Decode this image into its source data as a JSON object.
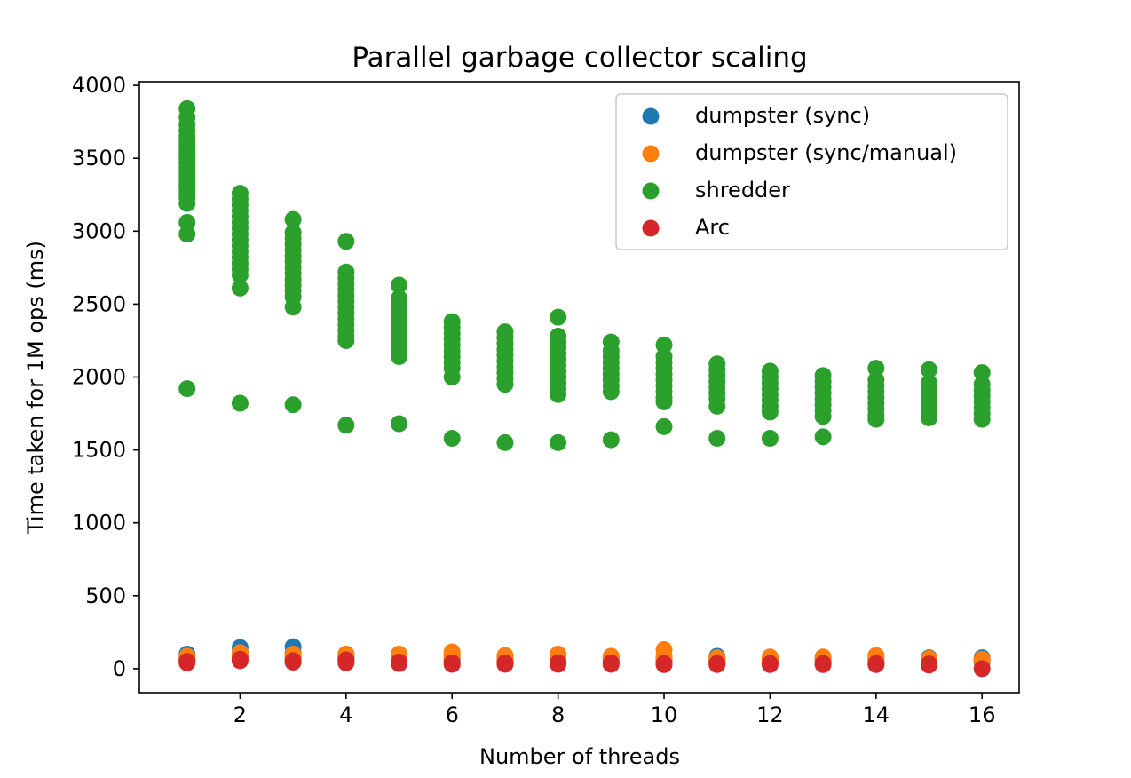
{
  "chart_data": {
    "type": "scatter",
    "title": "Parallel garbage collector scaling",
    "xlabel": "Number of threads",
    "ylabel": "Time taken for 1M ops (ms)",
    "xlim": [
      0.1,
      16.7
    ],
    "ylim": [
      -165,
      4025
    ],
    "x_ticks": [
      2,
      4,
      6,
      8,
      10,
      12,
      14,
      16
    ],
    "y_ticks": [
      0,
      500,
      1000,
      1500,
      2000,
      2500,
      3000,
      3500,
      4000
    ],
    "grid": false,
    "legend_position": "top-right",
    "series": [
      {
        "name": "dumpster (sync)",
        "color": "#1f77b4",
        "points": [
          [
            1,
            100
          ],
          [
            1,
            70
          ],
          [
            1,
            55
          ],
          [
            2,
            145
          ],
          [
            2,
            110
          ],
          [
            2,
            85
          ],
          [
            3,
            150
          ],
          [
            3,
            110
          ],
          [
            3,
            80
          ],
          [
            4,
            100
          ],
          [
            4,
            75
          ],
          [
            4,
            55
          ],
          [
            5,
            95
          ],
          [
            5,
            70
          ],
          [
            5,
            55
          ],
          [
            6,
            90
          ],
          [
            6,
            65
          ],
          [
            6,
            50
          ],
          [
            7,
            85
          ],
          [
            7,
            60
          ],
          [
            7,
            45
          ],
          [
            8,
            85
          ],
          [
            8,
            60
          ],
          [
            8,
            45
          ],
          [
            9,
            80
          ],
          [
            9,
            60
          ],
          [
            9,
            45
          ],
          [
            10,
            80
          ],
          [
            10,
            60
          ],
          [
            10,
            45
          ],
          [
            11,
            85
          ],
          [
            11,
            60
          ],
          [
            11,
            45
          ],
          [
            12,
            75
          ],
          [
            12,
            55
          ],
          [
            12,
            40
          ],
          [
            13,
            75
          ],
          [
            13,
            55
          ],
          [
            13,
            40
          ],
          [
            14,
            75
          ],
          [
            14,
            55
          ],
          [
            14,
            40
          ],
          [
            15,
            75
          ],
          [
            15,
            55
          ],
          [
            15,
            40
          ],
          [
            16,
            75
          ],
          [
            16,
            60
          ],
          [
            16,
            45
          ]
        ]
      },
      {
        "name": "dumpster (sync/manual)",
        "color": "#ff7f0e",
        "points": [
          [
            1,
            85
          ],
          [
            1,
            60
          ],
          [
            2,
            110
          ],
          [
            2,
            80
          ],
          [
            3,
            100
          ],
          [
            3,
            75
          ],
          [
            4,
            100
          ],
          [
            4,
            70
          ],
          [
            5,
            100
          ],
          [
            5,
            70
          ],
          [
            6,
            115
          ],
          [
            6,
            80
          ],
          [
            7,
            90
          ],
          [
            7,
            65
          ],
          [
            8,
            100
          ],
          [
            8,
            70
          ],
          [
            9,
            85
          ],
          [
            9,
            60
          ],
          [
            10,
            130
          ],
          [
            10,
            85
          ],
          [
            10,
            60
          ],
          [
            11,
            75
          ],
          [
            11,
            55
          ],
          [
            12,
            80
          ],
          [
            12,
            55
          ],
          [
            13,
            80
          ],
          [
            13,
            55
          ],
          [
            14,
            90
          ],
          [
            14,
            60
          ],
          [
            15,
            70
          ],
          [
            15,
            50
          ],
          [
            16,
            65
          ],
          [
            16,
            55
          ]
        ]
      },
      {
        "name": "shredder",
        "color": "#2ca02c",
        "points": [
          [
            1,
            3840
          ],
          [
            1,
            3780
          ],
          [
            1,
            3730
          ],
          [
            1,
            3690
          ],
          [
            1,
            3650
          ],
          [
            1,
            3620
          ],
          [
            1,
            3590
          ],
          [
            1,
            3560
          ],
          [
            1,
            3530
          ],
          [
            1,
            3500
          ],
          [
            1,
            3470
          ],
          [
            1,
            3440
          ],
          [
            1,
            3410
          ],
          [
            1,
            3380
          ],
          [
            1,
            3350
          ],
          [
            1,
            3320
          ],
          [
            1,
            3290
          ],
          [
            1,
            3260
          ],
          [
            1,
            3230
          ],
          [
            1,
            3190
          ],
          [
            1,
            3060
          ],
          [
            1,
            2980
          ],
          [
            1,
            1920
          ],
          [
            2,
            3260
          ],
          [
            2,
            3220
          ],
          [
            2,
            3180
          ],
          [
            2,
            3140
          ],
          [
            2,
            3100
          ],
          [
            2,
            3060
          ],
          [
            2,
            3020
          ],
          [
            2,
            2980
          ],
          [
            2,
            2940
          ],
          [
            2,
            2900
          ],
          [
            2,
            2860
          ],
          [
            2,
            2820
          ],
          [
            2,
            2780
          ],
          [
            2,
            2740
          ],
          [
            2,
            2700
          ],
          [
            2,
            2610
          ],
          [
            2,
            1820
          ],
          [
            3,
            3080
          ],
          [
            3,
            2990
          ],
          [
            3,
            2950
          ],
          [
            3,
            2910
          ],
          [
            3,
            2870
          ],
          [
            3,
            2830
          ],
          [
            3,
            2790
          ],
          [
            3,
            2750
          ],
          [
            3,
            2710
          ],
          [
            3,
            2670
          ],
          [
            3,
            2630
          ],
          [
            3,
            2590
          ],
          [
            3,
            2550
          ],
          [
            3,
            2480
          ],
          [
            3,
            1810
          ],
          [
            4,
            2930
          ],
          [
            4,
            2720
          ],
          [
            4,
            2680
          ],
          [
            4,
            2640
          ],
          [
            4,
            2600
          ],
          [
            4,
            2560
          ],
          [
            4,
            2520
          ],
          [
            4,
            2480
          ],
          [
            4,
            2440
          ],
          [
            4,
            2400
          ],
          [
            4,
            2360
          ],
          [
            4,
            2320
          ],
          [
            4,
            2280
          ],
          [
            4,
            2250
          ],
          [
            4,
            1670
          ],
          [
            5,
            2630
          ],
          [
            5,
            2540
          ],
          [
            5,
            2500
          ],
          [
            5,
            2460
          ],
          [
            5,
            2420
          ],
          [
            5,
            2380
          ],
          [
            5,
            2340
          ],
          [
            5,
            2300
          ],
          [
            5,
            2260
          ],
          [
            5,
            2220
          ],
          [
            5,
            2180
          ],
          [
            5,
            2140
          ],
          [
            5,
            1680
          ],
          [
            6,
            2380
          ],
          [
            6,
            2340
          ],
          [
            6,
            2300
          ],
          [
            6,
            2260
          ],
          [
            6,
            2220
          ],
          [
            6,
            2180
          ],
          [
            6,
            2140
          ],
          [
            6,
            2100
          ],
          [
            6,
            2060
          ],
          [
            6,
            2000
          ],
          [
            6,
            1580
          ],
          [
            7,
            2310
          ],
          [
            7,
            2270
          ],
          [
            7,
            2230
          ],
          [
            7,
            2190
          ],
          [
            7,
            2150
          ],
          [
            7,
            2110
          ],
          [
            7,
            2070
          ],
          [
            7,
            2030
          ],
          [
            7,
            1990
          ],
          [
            7,
            1950
          ],
          [
            7,
            1550
          ],
          [
            8,
            2410
          ],
          [
            8,
            2280
          ],
          [
            8,
            2240
          ],
          [
            8,
            2200
          ],
          [
            8,
            2160
          ],
          [
            8,
            2120
          ],
          [
            8,
            2080
          ],
          [
            8,
            2040
          ],
          [
            8,
            2000
          ],
          [
            8,
            1960
          ],
          [
            8,
            1920
          ],
          [
            8,
            1880
          ],
          [
            8,
            1550
          ],
          [
            9,
            2240
          ],
          [
            9,
            2180
          ],
          [
            9,
            2140
          ],
          [
            9,
            2100
          ],
          [
            9,
            2060
          ],
          [
            9,
            2020
          ],
          [
            9,
            1980
          ],
          [
            9,
            1940
          ],
          [
            9,
            1900
          ],
          [
            9,
            1570
          ],
          [
            10,
            2220
          ],
          [
            10,
            2140
          ],
          [
            10,
            2100
          ],
          [
            10,
            2060
          ],
          [
            10,
            2020
          ],
          [
            10,
            1980
          ],
          [
            10,
            1940
          ],
          [
            10,
            1900
          ],
          [
            10,
            1860
          ],
          [
            10,
            1830
          ],
          [
            10,
            1660
          ],
          [
            11,
            2090
          ],
          [
            11,
            2050
          ],
          [
            11,
            2010
          ],
          [
            11,
            1970
          ],
          [
            11,
            1930
          ],
          [
            11,
            1890
          ],
          [
            11,
            1850
          ],
          [
            11,
            1800
          ],
          [
            11,
            1580
          ],
          [
            12,
            2040
          ],
          [
            12,
            2000
          ],
          [
            12,
            1960
          ],
          [
            12,
            1920
          ],
          [
            12,
            1880
          ],
          [
            12,
            1840
          ],
          [
            12,
            1800
          ],
          [
            12,
            1760
          ],
          [
            12,
            1580
          ],
          [
            13,
            2010
          ],
          [
            13,
            1970
          ],
          [
            13,
            1930
          ],
          [
            13,
            1890
          ],
          [
            13,
            1850
          ],
          [
            13,
            1810
          ],
          [
            13,
            1770
          ],
          [
            13,
            1730
          ],
          [
            13,
            1590
          ],
          [
            14,
            2060
          ],
          [
            14,
            1980
          ],
          [
            14,
            1940
          ],
          [
            14,
            1900
          ],
          [
            14,
            1860
          ],
          [
            14,
            1820
          ],
          [
            14,
            1780
          ],
          [
            14,
            1740
          ],
          [
            14,
            1710
          ],
          [
            15,
            2050
          ],
          [
            15,
            1960
          ],
          [
            15,
            1920
          ],
          [
            15,
            1880
          ],
          [
            15,
            1840
          ],
          [
            15,
            1800
          ],
          [
            15,
            1760
          ],
          [
            15,
            1720
          ],
          [
            16,
            2030
          ],
          [
            16,
            1950
          ],
          [
            16,
            1910
          ],
          [
            16,
            1870
          ],
          [
            16,
            1830
          ],
          [
            16,
            1790
          ],
          [
            16,
            1750
          ],
          [
            16,
            1710
          ]
        ]
      },
      {
        "name": "Arc",
        "color": "#d62728",
        "points": [
          [
            1,
            50
          ],
          [
            1,
            40
          ],
          [
            2,
            65
          ],
          [
            2,
            55
          ],
          [
            3,
            55
          ],
          [
            3,
            45
          ],
          [
            4,
            60
          ],
          [
            4,
            40
          ],
          [
            5,
            45
          ],
          [
            5,
            35
          ],
          [
            6,
            40
          ],
          [
            6,
            30
          ],
          [
            7,
            40
          ],
          [
            7,
            30
          ],
          [
            8,
            40
          ],
          [
            8,
            30
          ],
          [
            9,
            40
          ],
          [
            9,
            30
          ],
          [
            10,
            35
          ],
          [
            10,
            28
          ],
          [
            11,
            35
          ],
          [
            11,
            28
          ],
          [
            12,
            35
          ],
          [
            12,
            28
          ],
          [
            13,
            35
          ],
          [
            13,
            28
          ],
          [
            14,
            35
          ],
          [
            14,
            28
          ],
          [
            15,
            32
          ],
          [
            15,
            25
          ],
          [
            16,
            0
          ]
        ]
      }
    ]
  }
}
